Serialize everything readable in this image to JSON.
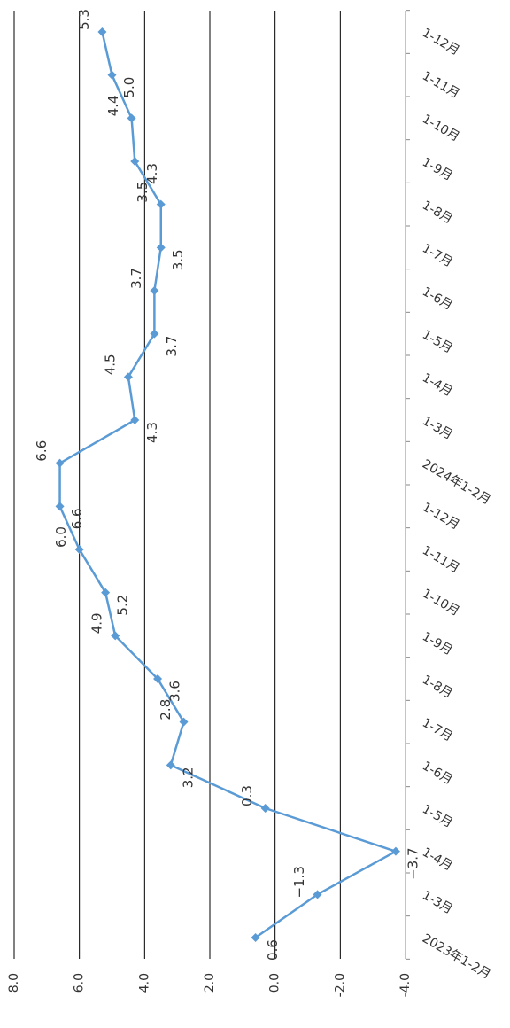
{
  "chart_data": {
    "type": "line",
    "orientation": "rotated-90-clockwise",
    "title": "",
    "xlabel": "",
    "ylabel": "",
    "categories": [
      "2023年1-2月",
      "1-3月",
      "1-4月",
      "1-5月",
      "1-6月",
      "1-7月",
      "1-8月",
      "1-9月",
      "1-10月",
      "1-11月",
      "1-12月",
      "2024年1-2月",
      "1-3月",
      "1-4月",
      "1-5月",
      "1-6月",
      "1-7月",
      "1-8月",
      "1-9月",
      "1-10月",
      "1-11月",
      "1-12月"
    ],
    "series": [
      {
        "values": [
          0.6,
          -1.3,
          -3.7,
          0.3,
          3.2,
          2.8,
          3.6,
          4.9,
          5.2,
          6.0,
          6.6,
          6.6,
          4.3,
          4.5,
          3.7,
          3.7,
          3.5,
          3.5,
          4.3,
          4.4,
          5.0,
          5.3
        ],
        "labels": [
          "0.6",
          "−1.3",
          "−3.7",
          "0.3",
          "3.2",
          "2.8",
          "3.6",
          "4.9",
          "5.2",
          "6.0",
          "6.6",
          "6.6",
          "4.3",
          "4.5",
          "3.7",
          "3.7",
          "3.5",
          "3.5",
          "4.3",
          "4.4",
          "5.0",
          "5.3"
        ],
        "color": "#5B9BD5"
      }
    ],
    "ylim": [
      -4.0,
      8.0
    ],
    "yticks": [
      "-4.0",
      "-2.0",
      "0.0",
      "2.0",
      "4.0",
      "6.0",
      "8.0"
    ],
    "grid": true,
    "legend": "none"
  }
}
